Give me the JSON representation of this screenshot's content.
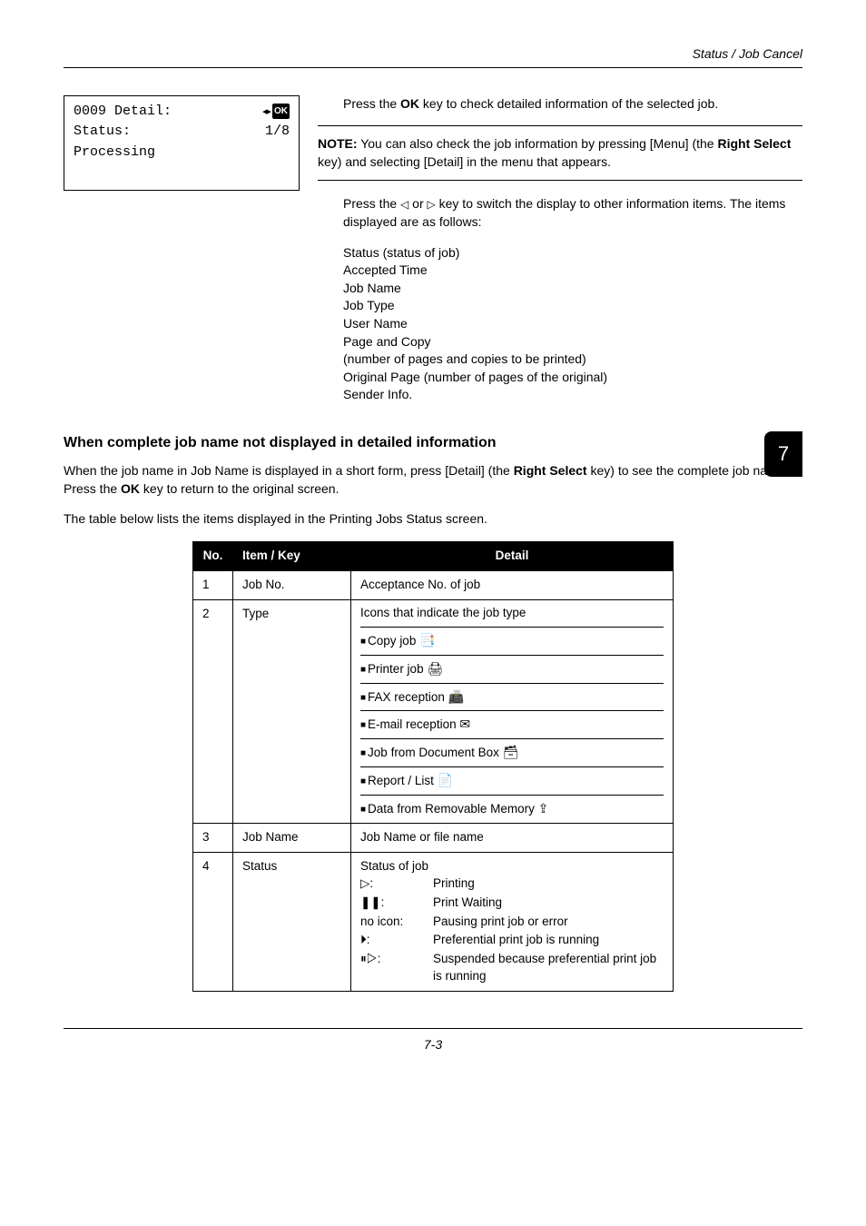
{
  "header": {
    "title": "Status / Job Cancel"
  },
  "lcd": {
    "line1_left": "0009 Detail:",
    "line1_ok": "OK",
    "line2_left": "Status:",
    "line2_right": "1/8",
    "line3": "Processing"
  },
  "top_right": {
    "p1_a": "Press the ",
    "p1_bold": "OK",
    "p1_b": " key to check detailed information of the selected job."
  },
  "note": {
    "label": "NOTE:",
    "text_a": " You can also check the job information by pressing [Menu] (the ",
    "bold": "Right Select",
    "text_b": " key) and selecting [Detail] in the menu that appears."
  },
  "switch": {
    "a": "Press the ",
    "b": " or ",
    "c": " key to switch the display to other information items. The items displayed are as follows:"
  },
  "items": [
    "Status (status of job)",
    "Accepted Time",
    "Job Name",
    "Job Type",
    "User Name",
    "Page and Copy",
    "(number of pages and copies to be printed)",
    "Original Page (number of pages of the original)",
    "Sender Info."
  ],
  "side_tab": "7",
  "subhead": "When complete job name not displayed in detailed information",
  "para1": {
    "a": "When the job name in Job Name is displayed in a short form, press [Detail] (the ",
    "bold": "Right Select",
    "b": " key) to see the complete job name. Press the ",
    "bold2": "OK",
    "c": " key to return to the original screen."
  },
  "para2": "The table below lists the items displayed in the Printing Jobs Status screen.",
  "table": {
    "headers": [
      "No.",
      "Item / Key",
      "Detail"
    ],
    "row1": {
      "no": "1",
      "item": "Job No.",
      "detail": "Acceptance No. of job"
    },
    "row2": {
      "no": "2",
      "item": "Type",
      "heading": "Icons that indicate the job type",
      "lines": [
        {
          "label": "Copy job",
          "icon": "📑"
        },
        {
          "label": "Printer job",
          "icon": "🖨"
        },
        {
          "label": "FAX reception",
          "icon": "📠"
        },
        {
          "label": "E-mail reception",
          "icon": "✉"
        },
        {
          "label": "Job from Document Box",
          "icon": "🗃"
        },
        {
          "label": "Report / List",
          "icon": "📄"
        },
        {
          "label": "Data from Removable Memory",
          "icon": "⇪"
        }
      ]
    },
    "row3": {
      "no": "3",
      "item": "Job Name",
      "detail": "Job Name or file name"
    },
    "row4": {
      "no": "4",
      "item": "Status",
      "title": "Status of job",
      "rows": [
        {
          "k": "▷:",
          "v": "Printing"
        },
        {
          "k": "❚❚:",
          "v": "Print Waiting"
        },
        {
          "k": "no icon:",
          "v": "Pausing print job or error"
        },
        {
          "k": "⏵:",
          "v": "Preferential print job is running"
        },
        {
          "k": "⏸▷:",
          "v": "Suspended because preferential print job is running"
        }
      ]
    }
  },
  "footer": "7-3"
}
